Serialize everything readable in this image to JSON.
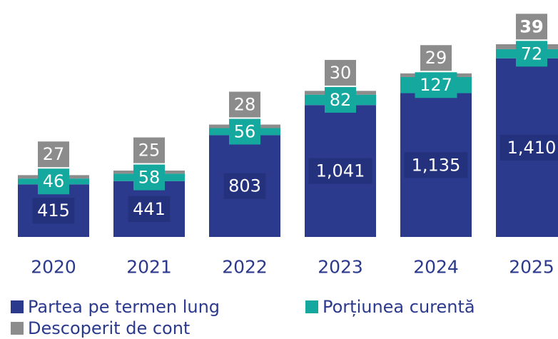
{
  "chart_data": {
    "type": "stacked-bar",
    "categories": [
      "2020",
      "2021",
      "2022",
      "2023",
      "2024",
      "2025"
    ],
    "series": [
      {
        "name": "Partea pe termen lung",
        "color": "#2b3a8c",
        "values": [
          415,
          441,
          803,
          1041,
          1135,
          1410
        ],
        "value_labels": [
          "415",
          "441",
          "803",
          "1,041",
          "1,135",
          "1,410"
        ]
      },
      {
        "name": "Porțiunea curentă",
        "color": "#14a89e",
        "values": [
          46,
          58,
          56,
          82,
          127,
          72
        ]
      },
      {
        "name": "Descoperit de cont",
        "color": "#8c8c8c",
        "values": [
          27,
          25,
          28,
          30,
          29,
          39
        ]
      }
    ]
  }
}
